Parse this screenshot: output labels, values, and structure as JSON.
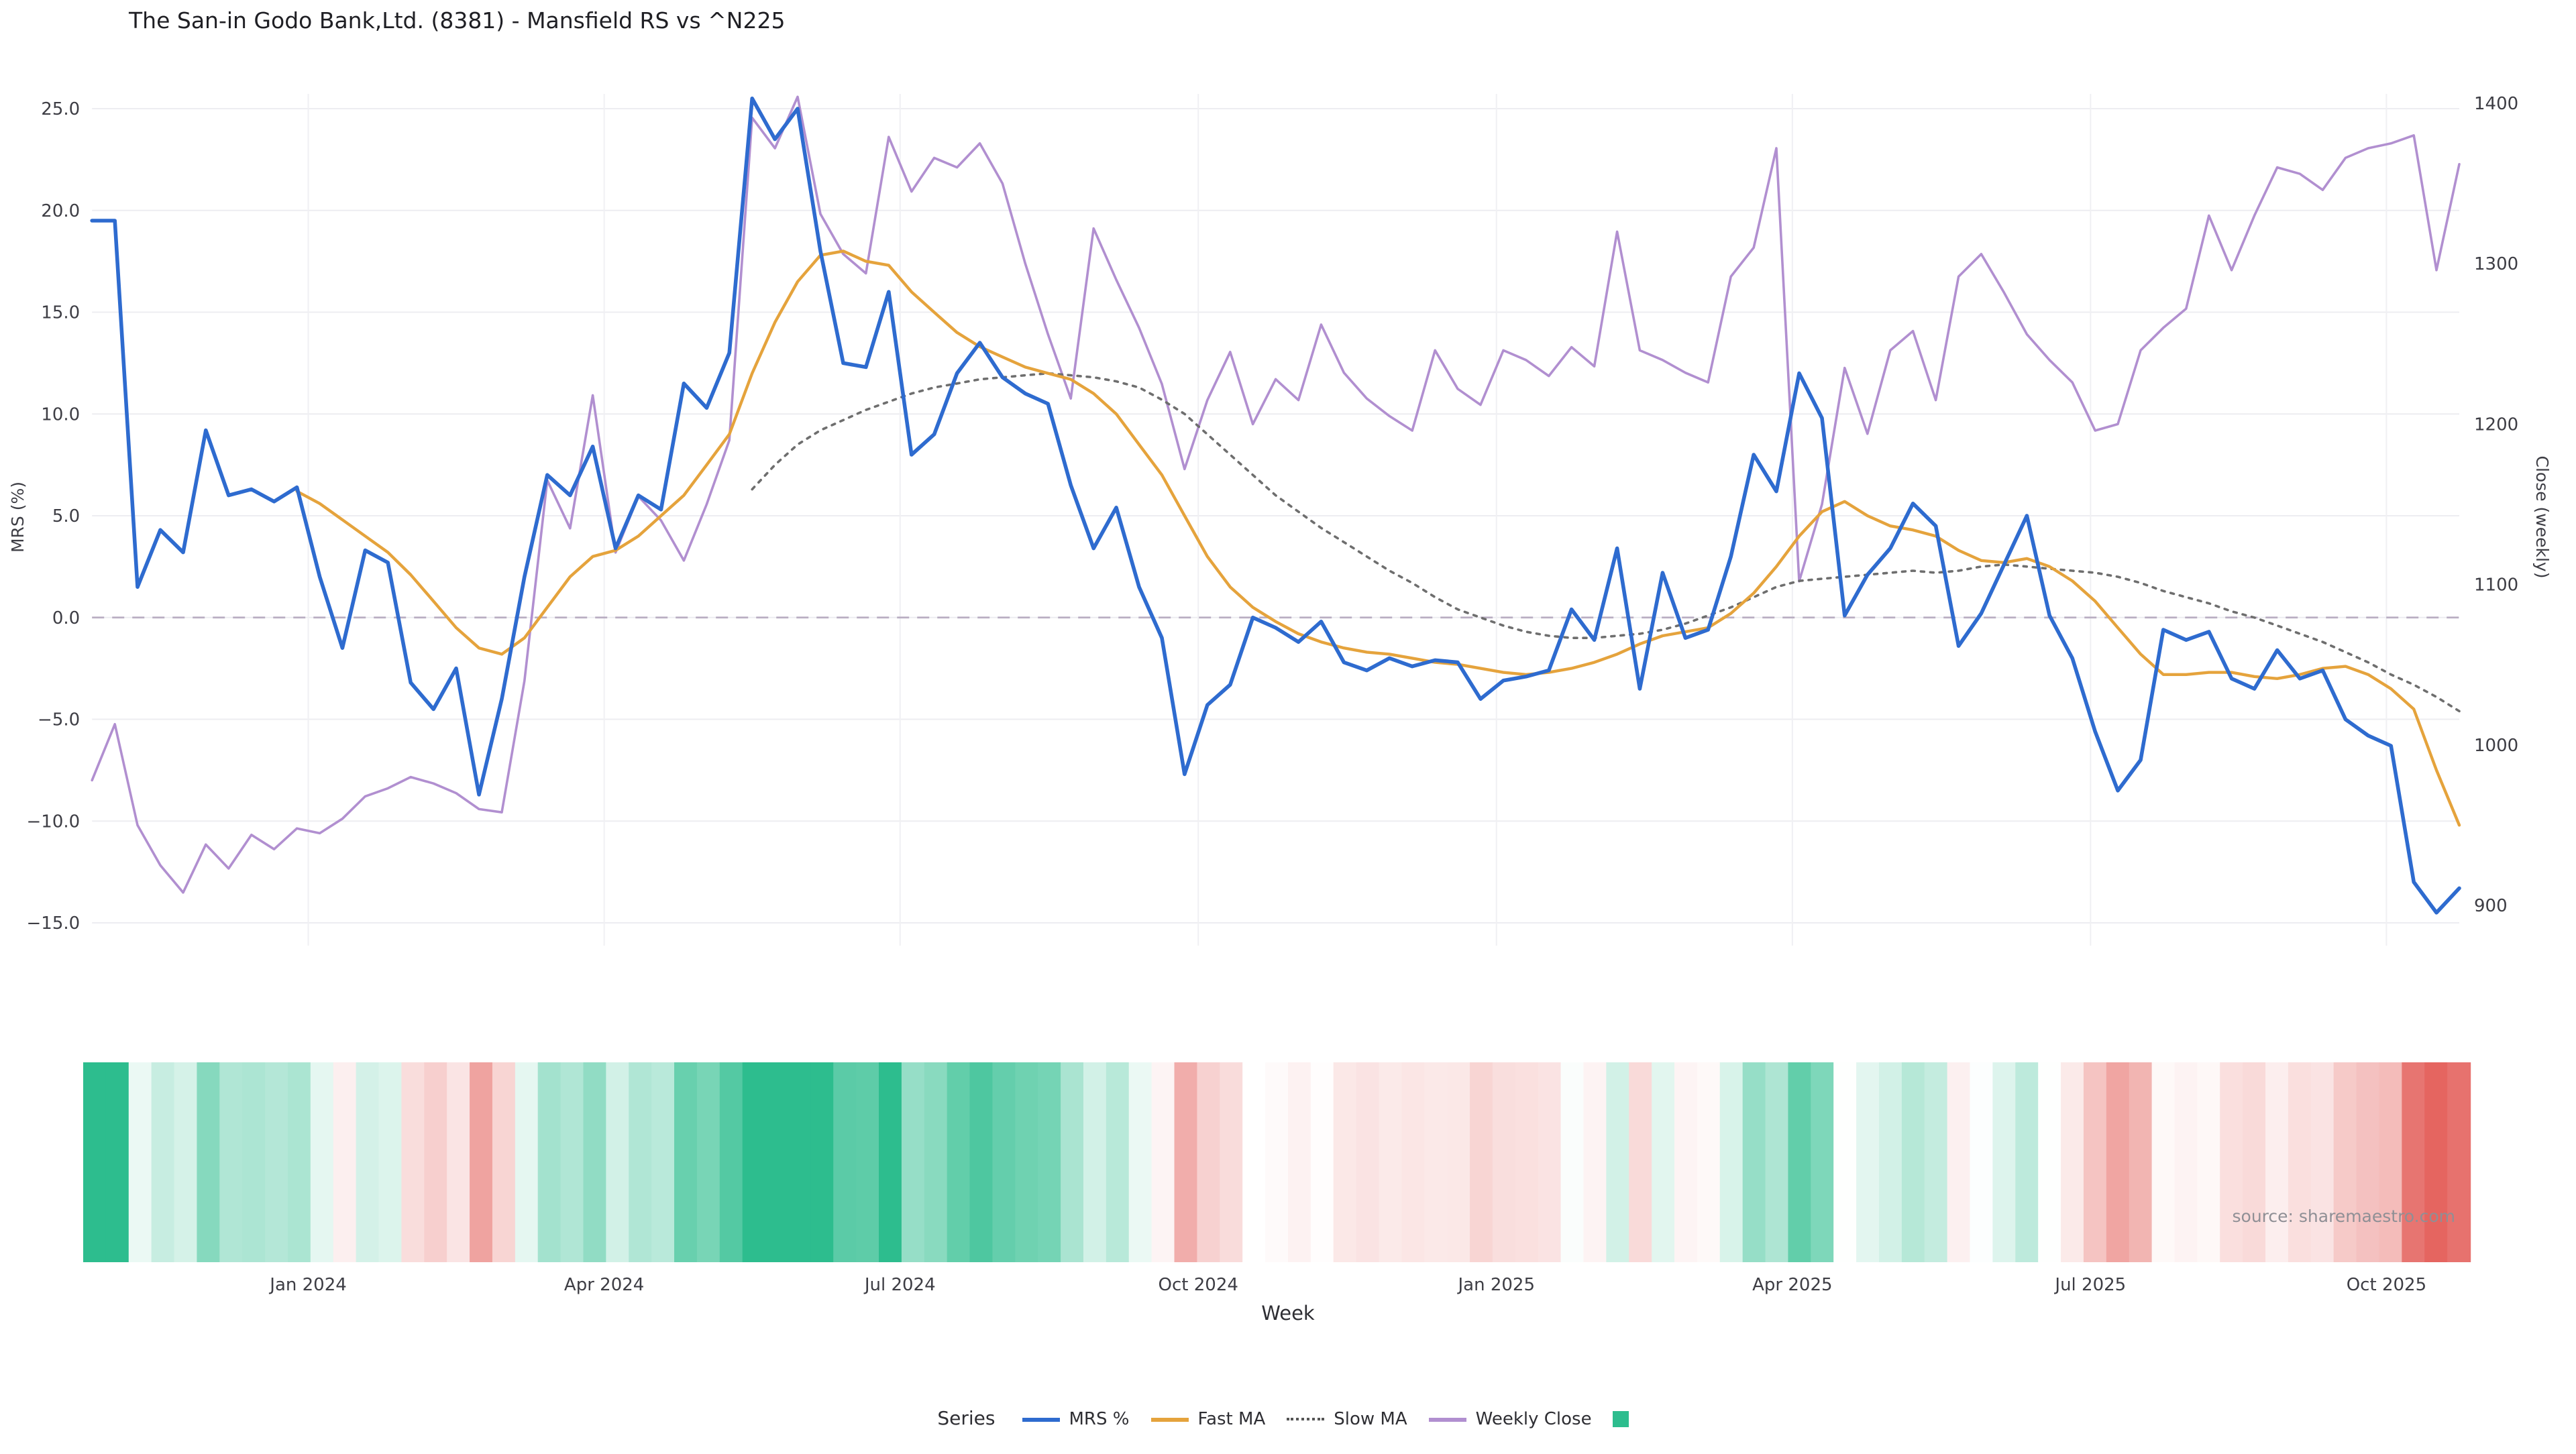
{
  "title": "The San-in Godo Bank,Ltd. (8381) - Mansfield RS vs ^N225",
  "source": "source: sharemaestro.com",
  "legend": {
    "series_label": "Series",
    "items": [
      {
        "label": "MRS %",
        "type": "line",
        "color": "#2e6bcf"
      },
      {
        "label": "Fast MA",
        "type": "line",
        "color": "#e5a33c"
      },
      {
        "label": "Slow MA",
        "type": "dotted-line",
        "color": "#555555"
      },
      {
        "label": "Weekly Close",
        "type": "line",
        "color": "#b18fd0"
      },
      {
        "label": "",
        "type": "swatch",
        "color": "#2dbd8e"
      }
    ]
  },
  "chart_data": {
    "type": "line",
    "title": "The San-in Godo Bank,Ltd. (8381) - Mansfield RS vs ^N225",
    "xlabel": "Week",
    "ylabel": "MRS (%)",
    "y2label": "Close (weekly)",
    "ylim_left": [
      -15,
      25
    ],
    "ylim_right": [
      900,
      1400
    ],
    "grid": true,
    "zero_line": true,
    "legend_position": "bottom",
    "x_ticks": [
      {
        "week": 9.5,
        "label": "Jan 2024"
      },
      {
        "week": 22.5,
        "label": "Apr 2024"
      },
      {
        "week": 35.5,
        "label": "Jul 2024"
      },
      {
        "week": 48.6,
        "label": "Oct 2024"
      },
      {
        "week": 61.7,
        "label": "Jan 2025"
      },
      {
        "week": 74.7,
        "label": "Apr 2025"
      },
      {
        "week": 87.8,
        "label": "Jul 2025"
      },
      {
        "week": 100.8,
        "label": "Oct 2025"
      }
    ],
    "y_ticks_left": [
      {
        "v": 25,
        "label": "25.0"
      },
      {
        "v": 20,
        "label": "20.0"
      },
      {
        "v": 15,
        "label": "15.0"
      },
      {
        "v": 10,
        "label": "10.0"
      },
      {
        "v": 5,
        "label": "5.0"
      },
      {
        "v": 0,
        "label": "0.0"
      },
      {
        "v": -5,
        "label": "−5.0"
      },
      {
        "v": -10,
        "label": "−10.0"
      },
      {
        "v": -15,
        "label": "−15.0"
      }
    ],
    "y_ticks_right": [
      {
        "v": 1400,
        "label": "1400"
      },
      {
        "v": 1300,
        "label": "1300"
      },
      {
        "v": 1200,
        "label": "1200"
      },
      {
        "v": 1100,
        "label": "1100"
      },
      {
        "v": 1000,
        "label": "1000"
      },
      {
        "v": 900,
        "label": "900"
      }
    ],
    "series": [
      {
        "name": "MRS %",
        "axis": "left",
        "color": "#2e6bcf",
        "style": "solid",
        "width": 2.8,
        "values": [
          19.5,
          19.5,
          1.5,
          4.3,
          3.2,
          9.2,
          6.0,
          6.3,
          5.7,
          6.4,
          2.0,
          -1.5,
          3.3,
          2.7,
          -3.2,
          -4.5,
          -2.5,
          -8.7,
          -4.0,
          2.0,
          7.0,
          6.0,
          8.4,
          3.4,
          6.0,
          5.3,
          11.5,
          10.3,
          13.0,
          25.5,
          23.5,
          25.0,
          18.0,
          12.5,
          12.3,
          16.0,
          8.0,
          9.0,
          12.0,
          13.5,
          11.8,
          11.0,
          10.5,
          6.5,
          3.4,
          5.4,
          1.5,
          -1.0,
          -7.7,
          -4.3,
          -3.3,
          0.0,
          -0.5,
          -1.2,
          -0.2,
          -2.2,
          -2.6,
          -2.0,
          -2.4,
          -2.1,
          -2.2,
          -4.0,
          -3.1,
          -2.9,
          -2.6,
          0.4,
          -1.1,
          3.4,
          -3.5,
          2.2,
          -1.0,
          -0.6,
          3.0,
          8.0,
          6.2,
          12.0,
          9.8,
          0.1,
          2.1,
          3.4,
          5.6,
          4.5,
          -1.4,
          0.2,
          2.6,
          5.0,
          0.1,
          -2.0,
          -5.6,
          -8.5,
          -7.0,
          -0.6,
          -1.1,
          -0.7,
          -3.0,
          -3.5,
          -1.6,
          -3.0,
          -2.6,
          -5.0,
          -5.8,
          -6.3,
          -13.0,
          -14.5,
          -13.3
        ]
      },
      {
        "name": "Fast MA",
        "axis": "left",
        "color": "#e5a33c",
        "style": "solid",
        "width": 2.2,
        "values": [
          null,
          null,
          null,
          null,
          null,
          null,
          null,
          null,
          null,
          6.2,
          5.6,
          4.8,
          4.0,
          3.2,
          2.1,
          0.8,
          -0.5,
          -1.5,
          -1.8,
          -1.0,
          0.5,
          2.0,
          3.0,
          3.3,
          4.0,
          5.0,
          6.0,
          7.5,
          9.0,
          12.0,
          14.5,
          16.5,
          17.8,
          18.0,
          17.5,
          17.3,
          16.0,
          15.0,
          14.0,
          13.3,
          12.8,
          12.3,
          12.0,
          11.7,
          11.0,
          10.0,
          8.5,
          7.0,
          5.0,
          3.0,
          1.5,
          0.5,
          -0.2,
          -0.8,
          -1.2,
          -1.5,
          -1.7,
          -1.8,
          -2.0,
          -2.2,
          -2.3,
          -2.5,
          -2.7,
          -2.8,
          -2.7,
          -2.5,
          -2.2,
          -1.8,
          -1.3,
          -0.9,
          -0.7,
          -0.5,
          0.2,
          1.2,
          2.5,
          4.0,
          5.2,
          5.7,
          5.0,
          4.5,
          4.3,
          4.0,
          3.3,
          2.8,
          2.7,
          2.9,
          2.5,
          1.8,
          0.8,
          -0.5,
          -1.8,
          -2.8,
          -2.8,
          -2.7,
          -2.7,
          -2.9,
          -3.0,
          -2.8,
          -2.5,
          -2.4,
          -2.8,
          -3.5,
          -4.5,
          -7.5,
          -10.2
        ]
      },
      {
        "name": "Slow MA",
        "axis": "left",
        "color": "#6e6e6e",
        "style": "dotted",
        "width": 1.8,
        "values": [
          null,
          null,
          null,
          null,
          null,
          null,
          null,
          null,
          null,
          null,
          null,
          null,
          null,
          null,
          null,
          null,
          null,
          null,
          null,
          null,
          null,
          null,
          null,
          null,
          null,
          null,
          null,
          null,
          null,
          6.3,
          7.5,
          8.5,
          9.2,
          9.7,
          10.2,
          10.6,
          11.0,
          11.3,
          11.5,
          11.7,
          11.8,
          11.9,
          12.0,
          11.9,
          11.8,
          11.6,
          11.3,
          10.7,
          10.0,
          9.0,
          8.0,
          7.0,
          6.0,
          5.2,
          4.4,
          3.7,
          3.0,
          2.3,
          1.7,
          1.0,
          0.4,
          0.0,
          -0.4,
          -0.7,
          -0.9,
          -1.0,
          -1.0,
          -0.9,
          -0.8,
          -0.6,
          -0.3,
          0.1,
          0.5,
          1.0,
          1.5,
          1.8,
          1.9,
          2.0,
          2.1,
          2.2,
          2.3,
          2.2,
          2.3,
          2.5,
          2.6,
          2.5,
          2.4,
          2.3,
          2.2,
          2.0,
          1.7,
          1.3,
          1.0,
          0.7,
          0.3,
          0.0,
          -0.4,
          -0.8,
          -1.2,
          -1.7,
          -2.2,
          -2.8,
          -3.3,
          -3.9,
          -4.6
        ]
      },
      {
        "name": "Weekly Close",
        "axis": "right",
        "color": "#b18fd0",
        "style": "solid",
        "width": 1.8,
        "values": [
          978,
          1013,
          950,
          925,
          908,
          938,
          923,
          944,
          935,
          948,
          945,
          954,
          968,
          973,
          980,
          976,
          970,
          960,
          958,
          1040,
          1165,
          1135,
          1218,
          1120,
          1155,
          1140,
          1115,
          1150,
          1190,
          1391,
          1372,
          1404,
          1331,
          1306,
          1294,
          1379,
          1345,
          1366,
          1360,
          1375,
          1350,
          1300,
          1256,
          1216,
          1322,
          1290,
          1260,
          1225,
          1172,
          1215,
          1245,
          1200,
          1228,
          1215,
          1262,
          1232,
          1216,
          1205,
          1196,
          1246,
          1222,
          1212,
          1246,
          1240,
          1230,
          1248,
          1236,
          1320,
          1246,
          1240,
          1232,
          1226,
          1292,
          1310,
          1372,
          1102,
          1150,
          1235,
          1194,
          1246,
          1258,
          1215,
          1292,
          1306,
          1282,
          1256,
          1240,
          1226,
          1196,
          1200,
          1246,
          1260,
          1272,
          1330,
          1296,
          1330,
          1360,
          1356,
          1346,
          1366,
          1372,
          1375,
          1380,
          1296,
          1362
        ]
      }
    ],
    "heatmap": {
      "source_series": "MRS %",
      "positive_color": "#2dbd8e",
      "negative_color": "#e25550",
      "neutral_color": "#ffffff",
      "max_abs_value": 16
    }
  }
}
